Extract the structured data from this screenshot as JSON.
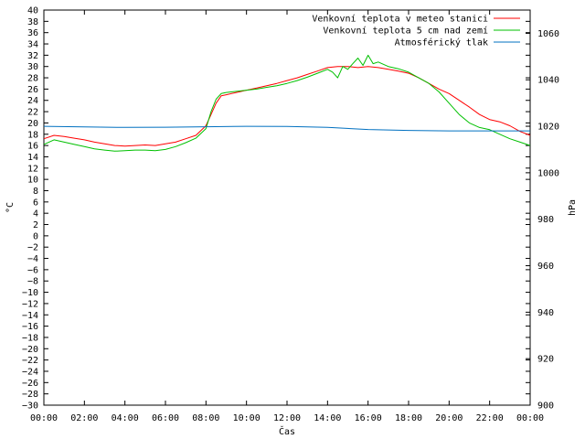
{
  "chart_data": {
    "type": "line",
    "xlabel": "Čas",
    "ylabel": "°C",
    "y2label": "hPa",
    "x_ticks": [
      "00:00",
      "02:00",
      "04:00",
      "06:00",
      "08:00",
      "10:00",
      "12:00",
      "14:00",
      "16:00",
      "18:00",
      "20:00",
      "22:00",
      "00:00"
    ],
    "x_range_hours": [
      0,
      24
    ],
    "ylim": [
      -30,
      40
    ],
    "y_tick_step": 2,
    "y2lim": [
      900,
      1070
    ],
    "y2_ticks": [
      900,
      920,
      940,
      960,
      980,
      1000,
      1020,
      1040,
      1060
    ],
    "grid": false,
    "legend_position": "top-right",
    "series": [
      {
        "name": "Venkovní teplota v meteo stanici",
        "axis": "left",
        "color": "#ff0000",
        "x": [
          0,
          0.5,
          1,
          1.5,
          2,
          2.5,
          3,
          3.5,
          4,
          4.5,
          5,
          5.5,
          6,
          6.5,
          7,
          7.5,
          8,
          8.25,
          8.5,
          8.75,
          9,
          9.5,
          10,
          10.5,
          11,
          11.5,
          12,
          12.5,
          13,
          13.5,
          14,
          14.5,
          15,
          15.5,
          16,
          16.5,
          17,
          17.5,
          18,
          18.5,
          19,
          19.5,
          20,
          20.5,
          21,
          21.5,
          22,
          22.5,
          23,
          23.5,
          24
        ],
        "values": [
          17.2,
          17.8,
          17.6,
          17.3,
          17.0,
          16.6,
          16.3,
          16.0,
          15.9,
          16.0,
          16.1,
          16.0,
          16.3,
          16.6,
          17.2,
          17.8,
          19.5,
          21.5,
          23.5,
          24.8,
          25.0,
          25.4,
          25.8,
          26.2,
          26.6,
          27.0,
          27.5,
          28.0,
          28.6,
          29.2,
          29.8,
          30.0,
          30.0,
          29.8,
          30.0,
          29.8,
          29.5,
          29.2,
          28.8,
          28.0,
          27.0,
          26.0,
          25.2,
          24.0,
          22.8,
          21.5,
          20.6,
          20.2,
          19.5,
          18.5,
          17.8
        ]
      },
      {
        "name": "Venkovní teplota 5 cm nad zemí",
        "axis": "left",
        "color": "#00c000",
        "x": [
          0,
          0.5,
          1,
          1.5,
          2,
          2.5,
          3,
          3.5,
          4,
          4.5,
          5,
          5.5,
          6,
          6.5,
          7,
          7.5,
          8,
          8.25,
          8.5,
          8.75,
          9,
          9.5,
          10,
          10.5,
          11,
          11.5,
          12,
          12.5,
          13,
          13.5,
          14,
          14.25,
          14.5,
          14.75,
          15,
          15.25,
          15.5,
          15.75,
          16,
          16.25,
          16.5,
          17,
          17.5,
          18,
          18.5,
          19,
          19.5,
          20,
          20.5,
          21,
          21.5,
          22,
          22.5,
          23,
          23.5,
          24
        ],
        "values": [
          16.2,
          17.0,
          16.6,
          16.2,
          15.8,
          15.4,
          15.2,
          15.0,
          15.1,
          15.2,
          15.2,
          15.1,
          15.3,
          15.8,
          16.5,
          17.3,
          19.0,
          22.0,
          24.2,
          25.2,
          25.4,
          25.6,
          25.8,
          26.0,
          26.3,
          26.6,
          27.0,
          27.5,
          28.1,
          28.8,
          29.5,
          29.0,
          28.0,
          30.0,
          29.5,
          30.5,
          31.5,
          30.2,
          32.0,
          30.5,
          30.8,
          30.0,
          29.6,
          29.0,
          28.0,
          27.0,
          25.5,
          23.5,
          21.5,
          20.0,
          19.2,
          18.8,
          18.0,
          17.2,
          16.6,
          16.0
        ]
      },
      {
        "name": "Atmosférický tlak",
        "axis": "right",
        "color": "#0070c0",
        "x": [
          0,
          2,
          4,
          6,
          8,
          10,
          12,
          14,
          16,
          18,
          20,
          22,
          24
        ],
        "values": [
          1020.0,
          1019.7,
          1019.5,
          1019.6,
          1019.8,
          1020.0,
          1019.9,
          1019.5,
          1018.6,
          1018.2,
          1018.0,
          1018.0,
          1018.0
        ]
      }
    ]
  }
}
